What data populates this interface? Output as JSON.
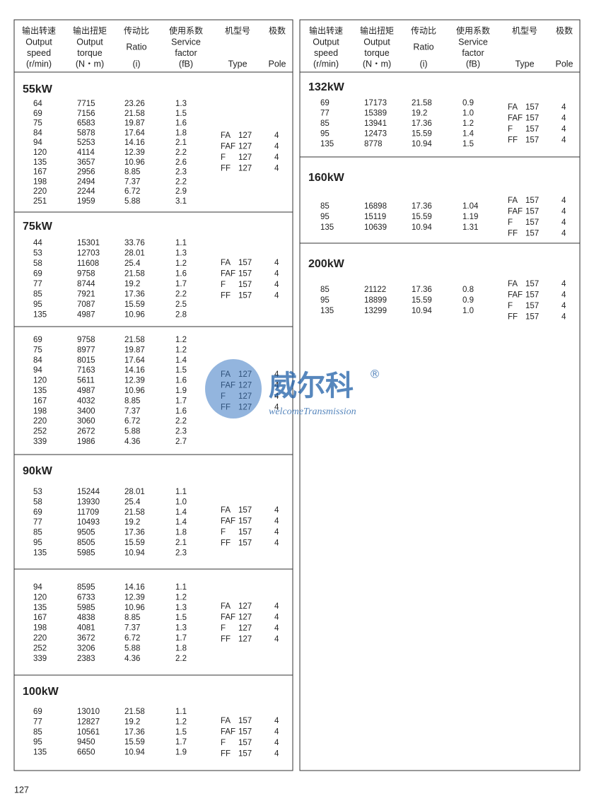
{
  "header": {
    "columns": [
      {
        "zh": "输出转速",
        "en": [
          "Output",
          "speed",
          "(r/min)"
        ]
      },
      {
        "zh": "输出扭矩",
        "en": [
          "Output",
          "torque",
          "(N・m)"
        ]
      },
      {
        "zh": "传动比",
        "en": [
          "Ratio",
          "(i)"
        ]
      },
      {
        "zh": "使用系数",
        "en": [
          "Service",
          "factor",
          "(fB)"
        ]
      },
      {
        "zh": "机型号",
        "en": [
          "Type"
        ]
      },
      {
        "zh": "极数",
        "en": [
          "Pole"
        ]
      }
    ]
  },
  "left": [
    {
      "title": "55kW",
      "rows": [
        [
          "64",
          "7715",
          "23.26",
          "1.3"
        ],
        [
          "69",
          "7156",
          "21.58",
          "1.5"
        ],
        [
          "75",
          "6583",
          "19.87",
          "1.6"
        ],
        [
          "84",
          "5878",
          "17.64",
          "1.8"
        ],
        [
          "94",
          "5253",
          "14.16",
          "2.1"
        ],
        [
          "120",
          "4114",
          "12.39",
          "2.2"
        ],
        [
          "135",
          "3657",
          "10.96",
          "2.6"
        ],
        [
          "167",
          "2956",
          "8.85",
          "2.3"
        ],
        [
          "198",
          "2494",
          "7.37",
          "2.2"
        ],
        [
          "220",
          "2244",
          "6.72",
          "2.9"
        ],
        [
          "251",
          "1959",
          "5.88",
          "3.1"
        ]
      ],
      "types": [
        [
          "FA",
          "127"
        ],
        [
          "FAF",
          "127"
        ],
        [
          "F",
          "127"
        ],
        [
          "FF",
          "127"
        ]
      ],
      "poles": [
        "4",
        "4",
        "4",
        "4"
      ]
    },
    {
      "title": "75kW",
      "rows": [
        [
          "44",
          "15301",
          "33.76",
          "1.1"
        ],
        [
          "53",
          "12703",
          "28.01",
          "1.3"
        ],
        [
          "58",
          "11608",
          "25.4",
          "1.2"
        ],
        [
          "69",
          "9758",
          "21.58",
          "1.6"
        ],
        [
          "77",
          "8744",
          "19.2",
          "1.7"
        ],
        [
          "85",
          "7921",
          "17.36",
          "2.2"
        ],
        [
          "95",
          "7087",
          "15.59",
          "2.5"
        ],
        [
          "135",
          "4987",
          "10.96",
          "2.8"
        ]
      ],
      "types": [
        [
          "FA",
          "157"
        ],
        [
          "FAF",
          "157"
        ],
        [
          "F",
          "157"
        ],
        [
          "FF",
          "157"
        ]
      ],
      "poles": [
        "4",
        "4",
        "4",
        "4"
      ]
    },
    {
      "rows": [
        [
          "69",
          "9758",
          "21.58",
          "1.2"
        ],
        [
          "75",
          "8977",
          "19.87",
          "1.2"
        ],
        [
          "84",
          "8015",
          "17.64",
          "1.4"
        ],
        [
          "94",
          "7163",
          "14.16",
          "1.5"
        ],
        [
          "120",
          "5611",
          "12.39",
          "1.6"
        ],
        [
          "135",
          "4987",
          "10.96",
          "1.9"
        ],
        [
          "167",
          "4032",
          "8.85",
          "1.7"
        ],
        [
          "198",
          "3400",
          "7.37",
          "1.6"
        ],
        [
          "220",
          "3060",
          "6.72",
          "2.2"
        ],
        [
          "252",
          "2672",
          "5.88",
          "2.3"
        ],
        [
          "339",
          "1986",
          "4.36",
          "2.7"
        ]
      ],
      "types": [
        [
          "FA",
          "127"
        ],
        [
          "FAF",
          "127"
        ],
        [
          "F",
          "127"
        ],
        [
          "FF",
          "127"
        ]
      ],
      "poles": [
        "4",
        "4",
        "4",
        "4"
      ]
    },
    {
      "title": "90kW",
      "rows": [
        [
          "53",
          "15244",
          "28.01",
          "1.1"
        ],
        [
          "58",
          "13930",
          "25.4",
          "1.0"
        ],
        [
          "69",
          "11709",
          "21.58",
          "1.4"
        ],
        [
          "77",
          "10493",
          "19.2",
          "1.4"
        ],
        [
          "85",
          "9505",
          "17.36",
          "1.8"
        ],
        [
          "95",
          "8505",
          "15.59",
          "2.1"
        ],
        [
          "135",
          "5985",
          "10.94",
          "2.3"
        ]
      ],
      "types": [
        [
          "FA",
          "157"
        ],
        [
          "FAF",
          "157"
        ],
        [
          "F",
          "157"
        ],
        [
          "FF",
          "157"
        ]
      ],
      "poles": [
        "4",
        "4",
        "4",
        "4"
      ]
    },
    {
      "rows": [
        [
          "94",
          "8595",
          "14.16",
          "1.1"
        ],
        [
          "120",
          "6733",
          "12.39",
          "1.2"
        ],
        [
          "135",
          "5985",
          "10.96",
          "1.3"
        ],
        [
          "167",
          "4838",
          "8.85",
          "1.5"
        ],
        [
          "198",
          "4081",
          "7.37",
          "1.3"
        ],
        [
          "220",
          "3672",
          "6.72",
          "1.7"
        ],
        [
          "252",
          "3206",
          "5.88",
          "1.8"
        ],
        [
          "339",
          "2383",
          "4.36",
          "2.2"
        ]
      ],
      "types": [
        [
          "FA",
          "127"
        ],
        [
          "FAF",
          "127"
        ],
        [
          "F",
          "127"
        ],
        [
          "FF",
          "127"
        ]
      ],
      "poles": [
        "4",
        "4",
        "4",
        "4"
      ]
    },
    {
      "title": "100kW",
      "rows": [
        [
          "69",
          "13010",
          "21.58",
          "1.1"
        ],
        [
          "77",
          "12827",
          "19.2",
          "1.2"
        ],
        [
          "85",
          "10561",
          "17.36",
          "1.5"
        ],
        [
          "95",
          "9450",
          "15.59",
          "1.7"
        ],
        [
          "135",
          "6650",
          "10.94",
          "1.9"
        ]
      ],
      "types": [
        [
          "FA",
          "157"
        ],
        [
          "FAF",
          "157"
        ],
        [
          "F",
          "157"
        ],
        [
          "FF",
          "157"
        ]
      ],
      "poles": [
        "4",
        "4",
        "4",
        "4"
      ]
    }
  ],
  "right": [
    {
      "title": "132kW",
      "rows": [
        [
          "69",
          "17173",
          "21.58",
          "0.9"
        ],
        [
          "77",
          "15389",
          "19.2",
          "1.0"
        ],
        [
          "85",
          "13941",
          "17.36",
          "1.2"
        ],
        [
          "95",
          "12473",
          "15.59",
          "1.4"
        ],
        [
          "135",
          "8778",
          "10.94",
          "1.5"
        ]
      ],
      "types": [
        [
          "FA",
          "157"
        ],
        [
          "FAF",
          "157"
        ],
        [
          "F",
          "157"
        ],
        [
          "FF",
          "157"
        ]
      ],
      "poles": [
        "4",
        "4",
        "4",
        "4"
      ]
    },
    {
      "title": "160kW",
      "rows": [
        [
          "85",
          "16898",
          "17.36",
          "1.04"
        ],
        [
          "95",
          "15119",
          "15.59",
          "1.19"
        ],
        [
          "135",
          "10639",
          "10.94",
          "1.31"
        ]
      ],
      "types": [
        [
          "FA",
          "157"
        ],
        [
          "FAF",
          "157"
        ],
        [
          "F",
          "157"
        ],
        [
          "FF",
          "157"
        ]
      ],
      "poles": [
        "4",
        "4",
        "4",
        "4"
      ]
    },
    {
      "title": "200kW",
      "rows": [
        [
          "85",
          "21122",
          "17.36",
          "0.8"
        ],
        [
          "95",
          "18899",
          "15.59",
          "0.9"
        ],
        [
          "135",
          "13299",
          "10.94",
          "1.0"
        ]
      ],
      "types": [
        [
          "FA",
          "157"
        ],
        [
          "FAF",
          "157"
        ],
        [
          "F",
          "157"
        ],
        [
          "FF",
          "157"
        ]
      ],
      "poles": [
        "4",
        "4",
        "4",
        "4"
      ]
    }
  ],
  "watermark": {
    "brand": "威尔科",
    "mark": "®",
    "sub": "welcomeTransmission"
  },
  "page_number": "127"
}
